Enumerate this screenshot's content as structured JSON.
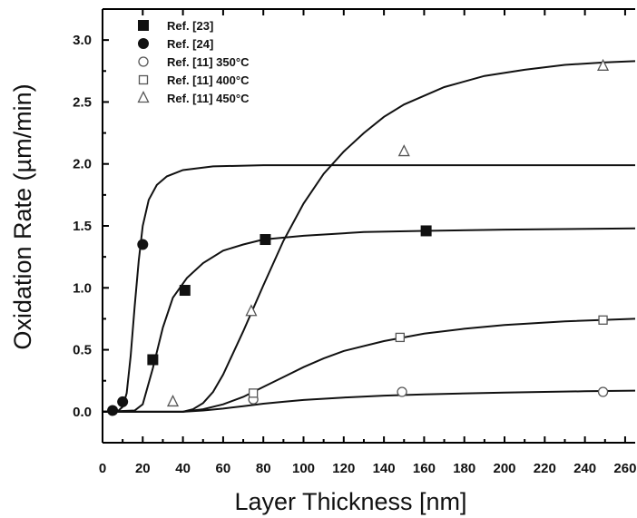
{
  "chart_data": {
    "type": "scatter",
    "xlabel": "Layer Thickness [nm]",
    "ylabel": "Oxidation Rate (µm/min)",
    "xlim": [
      0,
      265
    ],
    "ylim": [
      -0.25,
      3.25
    ],
    "xticks": [
      0,
      20,
      40,
      60,
      80,
      100,
      120,
      140,
      160,
      180,
      200,
      220,
      240,
      260
    ],
    "yticks": [
      0.0,
      0.5,
      1.0,
      1.5,
      2.0,
      2.5,
      3.0
    ],
    "xtick_labels": [
      "0",
      "20",
      "40",
      "60",
      "80",
      "100",
      "120",
      "140",
      "160",
      "180",
      "200",
      "220",
      "240",
      "260"
    ],
    "ytick_labels": [
      "0.0",
      "0.5",
      "1.0",
      "1.5",
      "2.0",
      "2.5",
      "3.0"
    ],
    "grid": false,
    "legend_position": "top-left",
    "series": [
      {
        "name": "Ref. [23]",
        "marker": "filled-square",
        "points": [
          [
            25,
            0.42
          ],
          [
            41,
            0.98
          ],
          [
            81,
            1.39
          ],
          [
            161,
            1.46
          ]
        ]
      },
      {
        "name": "Ref. [24]",
        "marker": "filled-circle",
        "points": [
          [
            5,
            0.01
          ],
          [
            10,
            0.08
          ],
          [
            20,
            1.35
          ]
        ]
      },
      {
        "name": "Ref. [11] 350°C",
        "marker": "open-circle",
        "points": [
          [
            75,
            0.1
          ],
          [
            149,
            0.16
          ],
          [
            249,
            0.16
          ]
        ]
      },
      {
        "name": "Ref. [11] 400°C",
        "marker": "open-square",
        "points": [
          [
            75,
            0.15
          ],
          [
            148,
            0.6
          ],
          [
            249,
            0.74
          ]
        ]
      },
      {
        "name": "Ref. [11] 450°C",
        "marker": "open-triangle",
        "points": [
          [
            35,
            0.08
          ],
          [
            74,
            0.81
          ],
          [
            150,
            2.1
          ],
          [
            249,
            2.79
          ]
        ]
      }
    ],
    "fit_curves": [
      {
        "points": [
          [
            0,
            0
          ],
          [
            8,
            0.01
          ],
          [
            10,
            0.04
          ],
          [
            12,
            0.15
          ],
          [
            14,
            0.45
          ],
          [
            16,
            0.85
          ],
          [
            18,
            1.22
          ],
          [
            20,
            1.5
          ],
          [
            23,
            1.71
          ],
          [
            27,
            1.83
          ],
          [
            32,
            1.9
          ],
          [
            40,
            1.95
          ],
          [
            55,
            1.98
          ],
          [
            80,
            1.99
          ],
          [
            150,
            1.99
          ],
          [
            265,
            1.99
          ]
        ]
      },
      {
        "points": [
          [
            0,
            0
          ],
          [
            16,
            0.01
          ],
          [
            20,
            0.06
          ],
          [
            25,
            0.35
          ],
          [
            30,
            0.68
          ],
          [
            35,
            0.92
          ],
          [
            42,
            1.08
          ],
          [
            50,
            1.2
          ],
          [
            60,
            1.3
          ],
          [
            70,
            1.35
          ],
          [
            80,
            1.39
          ],
          [
            100,
            1.42
          ],
          [
            130,
            1.45
          ],
          [
            160,
            1.46
          ],
          [
            200,
            1.47
          ],
          [
            265,
            1.48
          ]
        ]
      },
      {
        "points": [
          [
            0,
            0
          ],
          [
            40,
            0.0
          ],
          [
            45,
            0.02
          ],
          [
            50,
            0.07
          ],
          [
            55,
            0.16
          ],
          [
            60,
            0.3
          ],
          [
            70,
            0.65
          ],
          [
            80,
            1.02
          ],
          [
            90,
            1.38
          ],
          [
            100,
            1.68
          ],
          [
            110,
            1.92
          ],
          [
            120,
            2.1
          ],
          [
            130,
            2.25
          ],
          [
            140,
            2.38
          ],
          [
            150,
            2.48
          ],
          [
            170,
            2.62
          ],
          [
            190,
            2.71
          ],
          [
            210,
            2.76
          ],
          [
            230,
            2.8
          ],
          [
            250,
            2.82
          ],
          [
            265,
            2.83
          ]
        ]
      },
      {
        "points": [
          [
            0,
            0
          ],
          [
            40,
            0.0
          ],
          [
            50,
            0.02
          ],
          [
            60,
            0.06
          ],
          [
            70,
            0.12
          ],
          [
            80,
            0.2
          ],
          [
            90,
            0.28
          ],
          [
            100,
            0.36
          ],
          [
            110,
            0.43
          ],
          [
            120,
            0.49
          ],
          [
            140,
            0.57
          ],
          [
            160,
            0.63
          ],
          [
            180,
            0.67
          ],
          [
            200,
            0.7
          ],
          [
            230,
            0.73
          ],
          [
            265,
            0.75
          ]
        ]
      },
      {
        "points": [
          [
            0,
            0
          ],
          [
            40,
            0.0
          ],
          [
            50,
            0.01
          ],
          [
            60,
            0.025
          ],
          [
            70,
            0.045
          ],
          [
            80,
            0.065
          ],
          [
            90,
            0.08
          ],
          [
            100,
            0.095
          ],
          [
            120,
            0.115
          ],
          [
            140,
            0.13
          ],
          [
            160,
            0.14
          ],
          [
            200,
            0.155
          ],
          [
            240,
            0.165
          ],
          [
            265,
            0.17
          ]
        ]
      }
    ]
  }
}
